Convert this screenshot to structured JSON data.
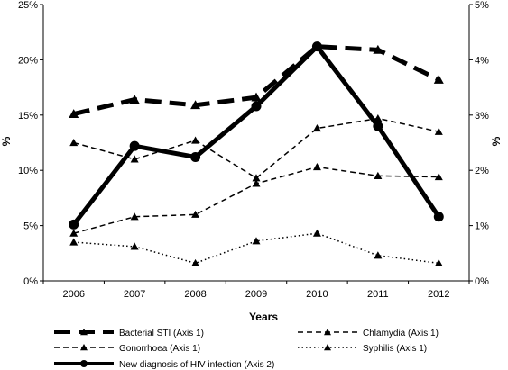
{
  "chart_data": {
    "type": "line",
    "x": [
      "2006",
      "2007",
      "2008",
      "2009",
      "2010",
      "2011",
      "2012"
    ],
    "xlabel": "Years",
    "ylabel_left": "%",
    "ylabel_right": "%",
    "ylim_left": [
      0,
      25
    ],
    "ylim_right": [
      0,
      5
    ],
    "yticks_left": [
      "0%",
      "5%",
      "10%",
      "15%",
      "20%",
      "25%"
    ],
    "yticks_right": [
      "0%",
      "1%",
      "2%",
      "3%",
      "4%",
      "5%"
    ],
    "grid": false,
    "legend_position": "bottom",
    "series": [
      {
        "name": "Bacterial STI (Axis 1)",
        "axis": 1,
        "style": "long-dash-thick",
        "marker": "triangle",
        "values": [
          15.1,
          16.4,
          15.9,
          16.6,
          21.2,
          20.9,
          18.2
        ]
      },
      {
        "name": "Chlamydia (Axis 1)",
        "axis": 1,
        "style": "dash",
        "marker": "triangle",
        "values": [
          4.3,
          5.8,
          6.0,
          8.8,
          10.3,
          9.5,
          9.4
        ]
      },
      {
        "name": "Gonorrhoea (Axis 1)",
        "axis": 1,
        "style": "dash",
        "marker": "triangle",
        "values": [
          12.5,
          11.0,
          12.7,
          9.3,
          13.8,
          14.7,
          13.5
        ]
      },
      {
        "name": "Syphilis (Axis 1)",
        "axis": 1,
        "style": "dot",
        "marker": "triangle",
        "values": [
          3.5,
          3.1,
          1.6,
          3.6,
          4.3,
          2.3,
          1.6
        ]
      },
      {
        "name": "New diagnosis of HIV infection (Axis 2)",
        "axis": 2,
        "style": "solid-thick",
        "marker": "circle",
        "values": [
          1.02,
          2.44,
          2.24,
          3.16,
          4.24,
          2.8,
          1.16
        ]
      }
    ]
  }
}
